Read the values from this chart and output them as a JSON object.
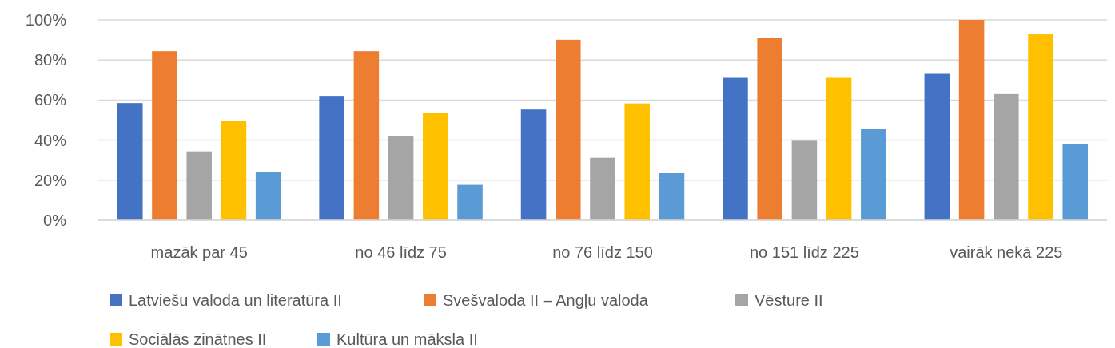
{
  "chart_data": {
    "type": "bar",
    "categories": [
      "mazāk par 45",
      "no 46 līdz 75",
      "no 76 līdz 150",
      "no 151 līdz 225",
      "vairāk nekā 225"
    ],
    "series": [
      {
        "name": "Latviešu valoda un literatūra II",
        "color": "#4472c4",
        "values": [
          58.5,
          62.1,
          55.3,
          71.1,
          73.1
        ]
      },
      {
        "name": "Svešvaloda II – Angļu valoda",
        "color": "#ed7d31",
        "values": [
          84.4,
          84.4,
          90.1,
          91.2,
          100
        ]
      },
      {
        "name": "Vēsture II",
        "color": "#a5a5a5",
        "values": [
          34.4,
          42.2,
          31.2,
          39.7,
          63.0
        ]
      },
      {
        "name": "Sociālās zinātnes II",
        "color": "#ffc000",
        "values": [
          49.8,
          53.4,
          58.3,
          71.1,
          93.2
        ]
      },
      {
        "name": "Kultūra un māksla II",
        "color": "#5b9bd5",
        "values": [
          24.1,
          17.7,
          23.5,
          45.6,
          38.0
        ]
      }
    ],
    "ylim": [
      0,
      100
    ],
    "yticks": [
      {
        "value": 0,
        "label": "0%"
      },
      {
        "value": 20,
        "label": "20%"
      },
      {
        "value": 40,
        "label": "40%"
      },
      {
        "value": 60,
        "label": "60%"
      },
      {
        "value": 80,
        "label": "80%"
      },
      {
        "value": 100,
        "label": "100%"
      }
    ],
    "grid": "y",
    "legend": "bottom"
  }
}
